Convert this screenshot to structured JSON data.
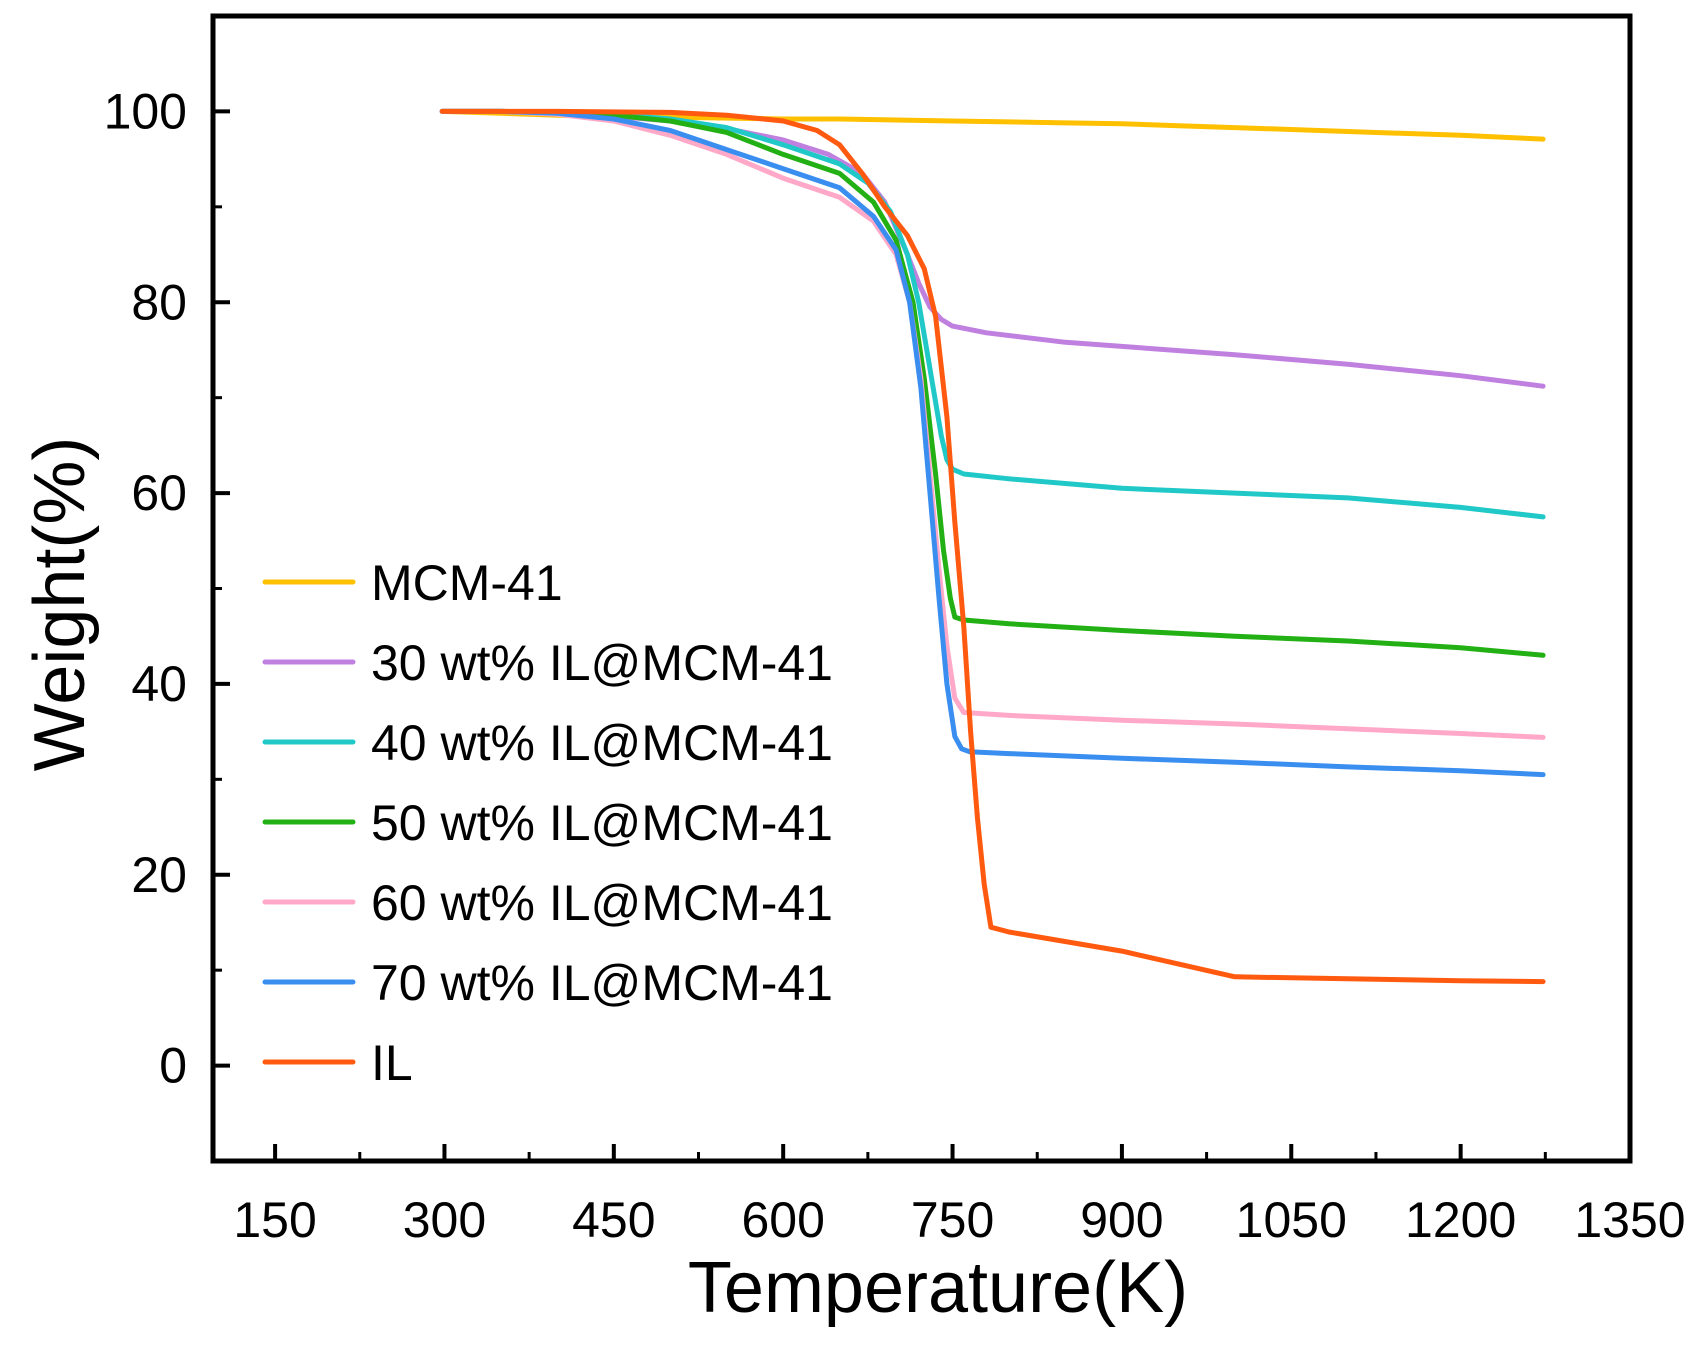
{
  "chart_data": {
    "type": "line",
    "title": "",
    "xlabel": "Temperature(K)",
    "ylabel": "Weight(%)",
    "xlim": [
      95,
      1350
    ],
    "ylim": [
      -10,
      110
    ],
    "xticks": [
      150,
      300,
      450,
      600,
      750,
      900,
      1050,
      1200,
      1350
    ],
    "yticks": [
      0,
      20,
      40,
      60,
      80,
      100
    ],
    "legend_position": "bottom-left",
    "grid": false,
    "series": [
      {
        "name": "MCM-41",
        "color": "#FFC000",
        "x": [
          298,
          350,
          400,
          450,
          500,
          550,
          600,
          650,
          700,
          750,
          800,
          850,
          900,
          950,
          1000,
          1050,
          1100,
          1150,
          1200,
          1273
        ],
        "y": [
          100,
          99.8,
          99.6,
          99.5,
          99.4,
          99.3,
          99.2,
          99.2,
          99.1,
          99.0,
          98.9,
          98.8,
          98.7,
          98.5,
          98.3,
          98.1,
          97.9,
          97.7,
          97.5,
          97.1
        ]
      },
      {
        "name": "30 wt% IL@MCM-41",
        "color": "#C080E0",
        "x": [
          298,
          350,
          400,
          450,
          500,
          550,
          600,
          640,
          670,
          690,
          710,
          720,
          730,
          740,
          750,
          780,
          850,
          1000,
          1100,
          1200,
          1273
        ],
        "y": [
          100,
          100,
          99.8,
          99.5,
          99.0,
          98.2,
          97.0,
          95.5,
          93.5,
          90.5,
          85.0,
          82.0,
          79.5,
          78.2,
          77.5,
          76.8,
          75.8,
          74.5,
          73.5,
          72.3,
          71.2
        ]
      },
      {
        "name": "40 wt% IL@MCM-41",
        "color": "#20C8C8",
        "x": [
          298,
          350,
          400,
          450,
          500,
          550,
          600,
          650,
          675,
          695,
          710,
          720,
          730,
          740,
          745,
          750,
          760,
          800,
          900,
          1000,
          1100,
          1200,
          1273
        ],
        "y": [
          100,
          100,
          99.9,
          99.7,
          99.2,
          98.3,
          96.5,
          94.5,
          92.5,
          89.5,
          85.0,
          80.0,
          73.0,
          66.0,
          63.5,
          62.5,
          62.0,
          61.5,
          60.5,
          60.0,
          59.5,
          58.5,
          57.5
        ]
      },
      {
        "name": "50 wt% IL@MCM-41",
        "color": "#22B014",
        "x": [
          298,
          350,
          400,
          450,
          500,
          550,
          600,
          650,
          680,
          700,
          715,
          725,
          735,
          742,
          748,
          752,
          760,
          800,
          900,
          1000,
          1100,
          1200,
          1273
        ],
        "y": [
          100,
          100,
          99.9,
          99.6,
          99.0,
          97.8,
          95.5,
          93.5,
          90.5,
          86.5,
          80.0,
          72.0,
          62.0,
          54.0,
          49.0,
          47.0,
          46.7,
          46.3,
          45.6,
          45.0,
          44.5,
          43.8,
          43.0
        ]
      },
      {
        "name": "60 wt% IL@MCM-41",
        "color": "#FFA8C8",
        "x": [
          298,
          350,
          400,
          450,
          500,
          550,
          600,
          650,
          680,
          700,
          712,
          722,
          730,
          738,
          745,
          752,
          760,
          800,
          900,
          1000,
          1100,
          1200,
          1273
        ],
        "y": [
          100,
          100,
          99.7,
          99.0,
          97.5,
          95.5,
          93.0,
          91.0,
          88.5,
          85.0,
          80.0,
          72.0,
          62.0,
          52.0,
          44.0,
          38.5,
          37.0,
          36.7,
          36.2,
          35.8,
          35.3,
          34.8,
          34.4
        ]
      },
      {
        "name": "70 wt% IL@MCM-41",
        "color": "#3A8EF0",
        "x": [
          298,
          350,
          400,
          450,
          500,
          550,
          600,
          650,
          680,
          700,
          712,
          722,
          730,
          738,
          745,
          752,
          758,
          765,
          800,
          900,
          1000,
          1100,
          1200,
          1273
        ],
        "y": [
          100,
          100,
          99.8,
          99.2,
          98.0,
          96.0,
          94.0,
          92.0,
          89.0,
          85.5,
          80.0,
          71.0,
          60.0,
          49.0,
          40.0,
          34.5,
          33.2,
          32.9,
          32.7,
          32.2,
          31.8,
          31.3,
          30.9,
          30.5
        ]
      },
      {
        "name": "IL",
        "color": "#FF5A0F",
        "x": [
          298,
          400,
          500,
          550,
          600,
          630,
          650,
          670,
          690,
          710,
          725,
          735,
          745,
          752,
          760,
          766,
          772,
          778,
          784,
          800,
          900,
          1000,
          1100,
          1200,
          1273
        ],
        "y": [
          100,
          100,
          99.9,
          99.6,
          99.0,
          98.0,
          96.5,
          93.5,
          90.0,
          87.0,
          83.5,
          78.5,
          68.0,
          57.0,
          46.0,
          35.0,
          26.0,
          19.0,
          14.5,
          14.0,
          12.0,
          9.3,
          9.1,
          8.9,
          8.8
        ]
      }
    ]
  }
}
